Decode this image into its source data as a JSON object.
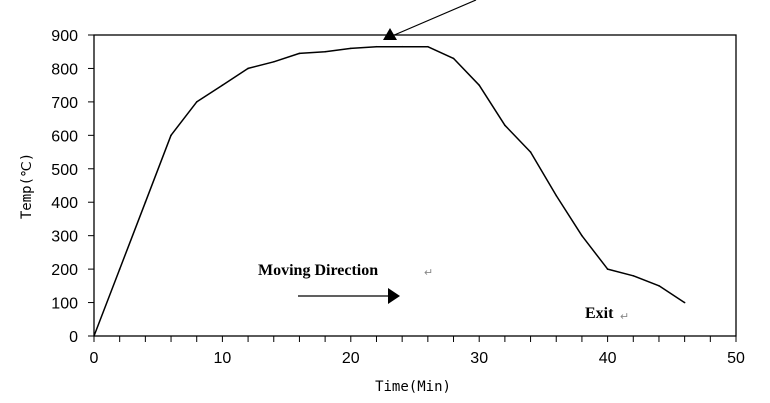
{
  "chart_data": {
    "type": "line",
    "title": "",
    "xlabel": "Time(Min)",
    "ylabel": "Temp(℃)",
    "xlim": [
      0,
      50
    ],
    "ylim": [
      0,
      900
    ],
    "x_ticks": [
      0,
      10,
      20,
      30,
      40,
      50
    ],
    "x_minor_step": 2,
    "y_ticks": [
      0,
      100,
      200,
      300,
      400,
      500,
      600,
      700,
      800,
      900
    ],
    "grid": false,
    "legend": "none",
    "line_color": "#000000",
    "series": [
      {
        "x": [
          0,
          2,
          4,
          6,
          8,
          10,
          12,
          14,
          16,
          18,
          20,
          22,
          24,
          26,
          28,
          30,
          32,
          34,
          36,
          38,
          40,
          42,
          44,
          46
        ],
        "y": [
          0,
          200,
          400,
          600,
          700,
          750,
          800,
          820,
          845,
          850,
          860,
          865,
          865,
          865,
          830,
          750,
          630,
          550,
          420,
          300,
          200,
          180,
          150,
          100
        ]
      }
    ],
    "annotations": {
      "moving_direction": "Moving Direction",
      "exit": "Exit",
      "return_mark": "↵"
    }
  }
}
